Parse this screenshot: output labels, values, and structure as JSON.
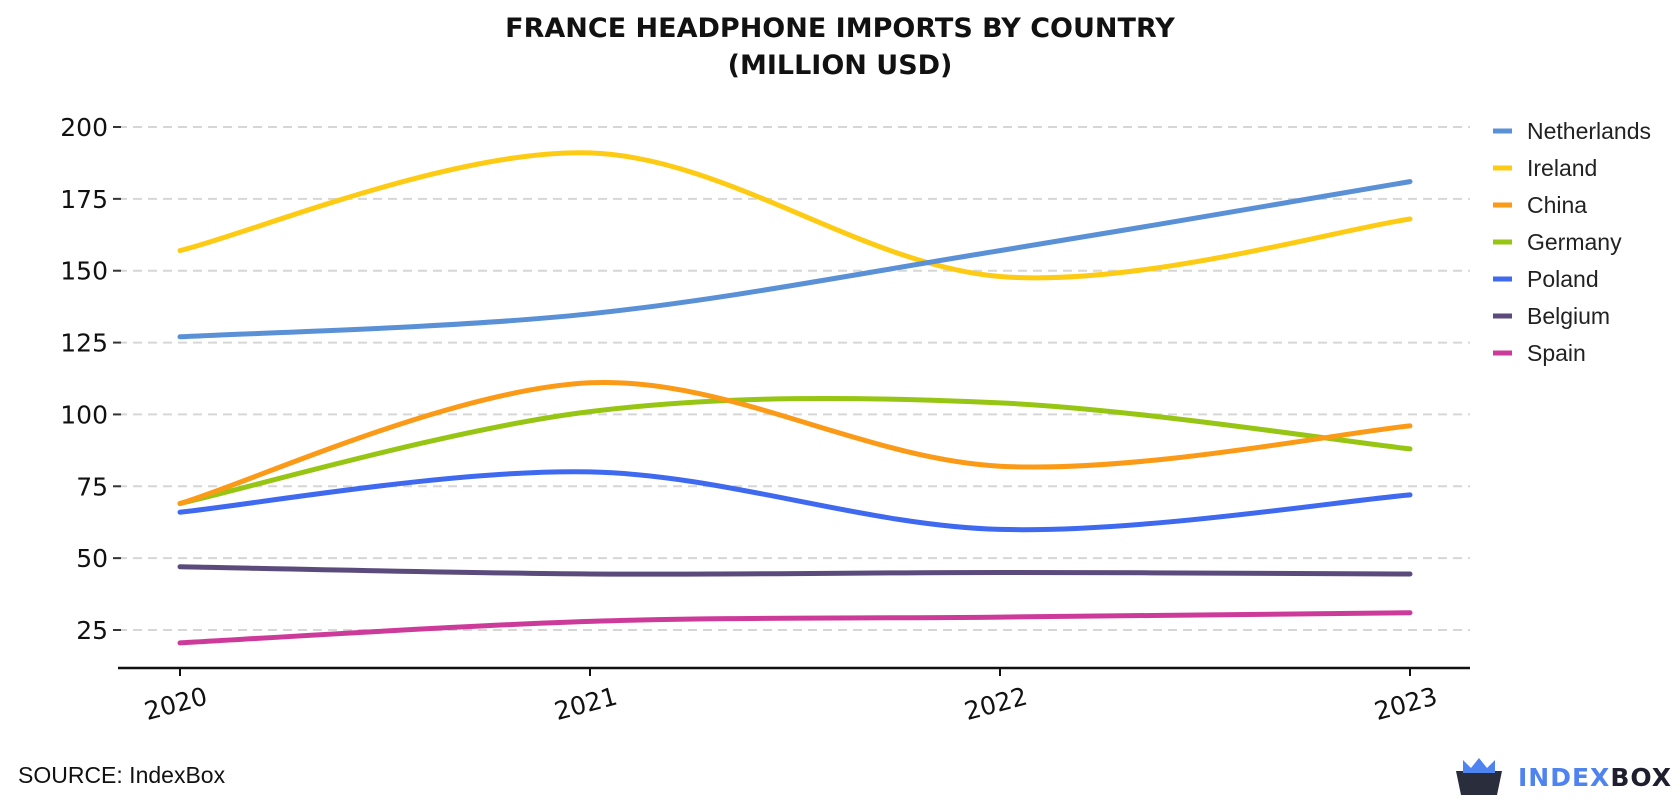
{
  "chart_data": {
    "type": "line",
    "title_lines": [
      "FRANCE HEADPHONE IMPORTS BY COUNTRY",
      "(MILLION USD)"
    ],
    "x": [
      "2020",
      "2021",
      "2022",
      "2023"
    ],
    "ylim": [
      12,
      205
    ],
    "yticks": [
      25,
      50,
      75,
      100,
      125,
      150,
      175,
      200
    ],
    "grid": true,
    "legend_position": "right",
    "series": [
      {
        "name": "Netherlands",
        "color": "#5a90d6",
        "values": [
          127,
          135,
          157,
          181
        ]
      },
      {
        "name": "Ireland",
        "color": "#fecb14",
        "values": [
          157,
          191,
          148,
          168
        ]
      },
      {
        "name": "China",
        "color": "#fb9a17",
        "values": [
          69,
          111,
          82,
          96
        ]
      },
      {
        "name": "Germany",
        "color": "#97c513",
        "values": [
          69,
          101,
          104,
          88
        ]
      },
      {
        "name": "Poland",
        "color": "#3f69ee",
        "values": [
          66,
          80,
          60,
          72
        ]
      },
      {
        "name": "Belgium",
        "color": "#5b4a7c",
        "values": [
          47,
          44.5,
          45,
          44.5
        ]
      },
      {
        "name": "Spain",
        "color": "#cd3b9a",
        "values": [
          20.5,
          28,
          29.5,
          31
        ]
      }
    ]
  },
  "footer": {
    "source": "SOURCE: IndexBox",
    "brand_part1": "INDEX",
    "brand_part2": "BOX"
  }
}
